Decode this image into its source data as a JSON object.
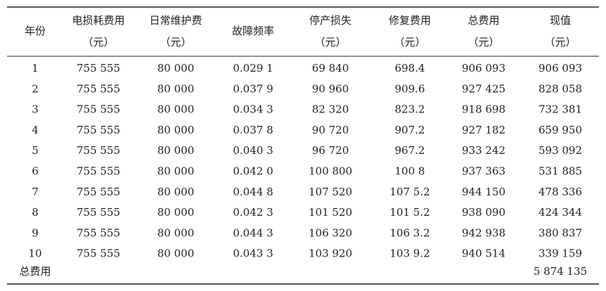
{
  "table": {
    "headers": [
      [
        "年份"
      ],
      [
        "电损耗费用",
        "（元）"
      ],
      [
        "日常维护费",
        "（元）"
      ],
      [
        "故障频率"
      ],
      [
        "停产损失",
        "（元）"
      ],
      [
        "修复费用",
        "（元）"
      ],
      [
        "总费用",
        "（元）"
      ],
      [
        "现值",
        "（元）"
      ]
    ],
    "rows": [
      [
        "1",
        "755 555",
        "80 000",
        "0.029 1",
        "69 840",
        "698.4",
        "906 093",
        "906 093"
      ],
      [
        "2",
        "755 555",
        "80 000",
        "0.037 9",
        "90 960",
        "909.6",
        "927 425",
        "828 058"
      ],
      [
        "3",
        "755 555",
        "80 000",
        "0.034 3",
        "82 320",
        "823.2",
        "918 698",
        "732 381"
      ],
      [
        "4",
        "755 555",
        "80 000",
        "0.037 8",
        "90 720",
        "907.2",
        "927 182",
        "659 950"
      ],
      [
        "5",
        "755 555",
        "80 000",
        "0.040 3",
        "96 720",
        "967.2",
        "933 242",
        "593 092"
      ],
      [
        "6",
        "755 555",
        "80 000",
        "0.042 0",
        "100 800",
        "100 8",
        "937 363",
        "531 885"
      ],
      [
        "7",
        "755 555",
        "80 000",
        "0.044 8",
        "107 520",
        "107 5.2",
        "944 150",
        "478 336"
      ],
      [
        "8",
        "755 555",
        "80 000",
        "0.042 3",
        "101 520",
        "101 5.2",
        "938 090",
        "424 344"
      ],
      [
        "9",
        "755 555",
        "80 000",
        "0.044 3",
        "106 320",
        "106 3.2",
        "942 938",
        "380 837"
      ],
      [
        "10",
        "755 555",
        "80 000",
        "0.043 3",
        "103 920",
        "103 9.2",
        "940 514",
        "339 159"
      ]
    ],
    "total": {
      "label": "总费用",
      "value": "5 874 135"
    }
  }
}
